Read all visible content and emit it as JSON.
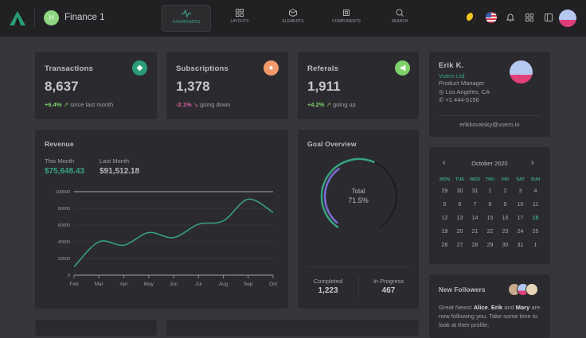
{
  "nav": {
    "brand": "Finance 1",
    "workspace_initial": "H",
    "items": [
      {
        "label": "DASHBOARDS",
        "icon": "activity-icon",
        "active": true
      },
      {
        "label": "LAYOUTS",
        "icon": "grid-icon"
      },
      {
        "label": "ELEMENTS",
        "icon": "cube-icon"
      },
      {
        "label": "COMPONENTS",
        "icon": "chip-icon"
      },
      {
        "label": "SEARCH",
        "icon": "search-icon"
      }
    ]
  },
  "colors": {
    "accent": "#41b883",
    "down": "#e05fa0",
    "up": "#7fcf6a",
    "orange": "#f29a6c"
  },
  "stats": [
    {
      "title": "Transactions",
      "value": "8,637",
      "change": "+6.4%",
      "note": "since last month",
      "trend": "up",
      "icon": "diamond-icon",
      "icon_color": "#2a9d78"
    },
    {
      "title": "Subscriptions",
      "value": "1,378",
      "change": "-2.1%",
      "note": "going down",
      "trend": "down",
      "icon": "user-plus-icon",
      "icon_color": "#f29a6c"
    },
    {
      "title": "Referals",
      "value": "1,911",
      "change": "+4.2%",
      "note": "going up",
      "trend": "up",
      "icon": "megaphone-icon",
      "icon_color": "#7fcf6a"
    }
  ],
  "profile": {
    "name": "Erik K.",
    "company": "Vuero Ltd.",
    "role": "Product Manager",
    "location": "Los Angeles, CA",
    "phone": "+1 444-5156",
    "email": "erikkovalsky@vuero.io"
  },
  "revenue": {
    "title": "Revenue",
    "this_month_label": "This Month",
    "this_month": "$75,648.43",
    "last_month_label": "Last Month",
    "last_month": "$91,512.18"
  },
  "chart_data": {
    "type": "line",
    "categories": [
      "Feb",
      "Mar",
      "Apr",
      "May",
      "Jun",
      "Jul",
      "Aug",
      "Sep",
      "Oct"
    ],
    "values": [
      10000,
      40000,
      36000,
      51000,
      45000,
      61000,
      65000,
      91000,
      75000
    ],
    "ylim": [
      0,
      100000
    ],
    "yticks": [
      "100000",
      "80000",
      "60000",
      "40000",
      "20000",
      "0"
    ],
    "color": "#3aa283",
    "grid": true
  },
  "goal": {
    "title": "Goal Overview",
    "total_label": "Total",
    "total": "71.5%",
    "percent": 71.5,
    "completed_label": "Completed",
    "completed": "1,223",
    "progress_label": "In Progress",
    "progress": "467"
  },
  "calendar": {
    "month": "October 2020",
    "days": [
      "MON",
      "TUE",
      "WED",
      "THU",
      "FRI",
      "SAT",
      "SUN"
    ],
    "weeks": [
      [
        "29",
        "30",
        "31",
        "1",
        "2",
        "3",
        "4"
      ],
      [
        "5",
        "6",
        "7",
        "8",
        "9",
        "10",
        "11"
      ],
      [
        "12",
        "13",
        "14",
        "15",
        "16",
        "17",
        "18"
      ],
      [
        "19",
        "20",
        "21",
        "22",
        "23",
        "24",
        "25"
      ],
      [
        "26",
        "27",
        "28",
        "29",
        "30",
        "31",
        "1"
      ]
    ],
    "today": "18"
  },
  "followers": {
    "title": "New Followers",
    "text_pre": "Great News! ",
    "n1": "Alice",
    ", ": ", ",
    "n2": "Erik",
    "and": " and ",
    "n3": "Mary",
    "text_post": " are now following you. Take some time to look at their profile."
  }
}
